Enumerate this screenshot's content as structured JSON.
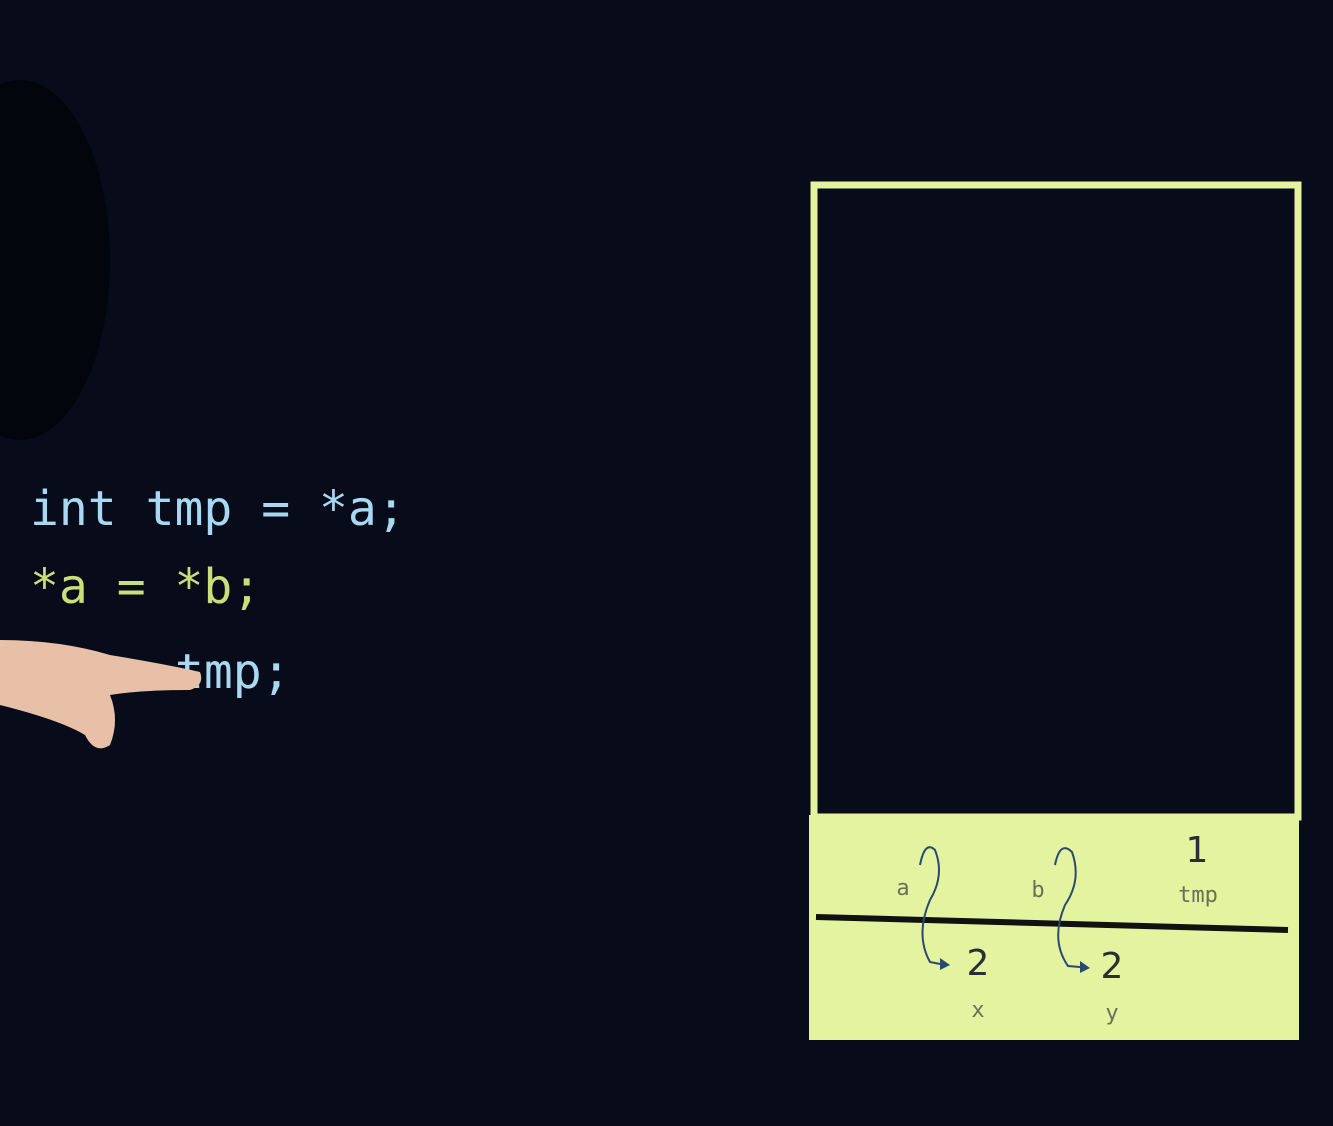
{
  "code": {
    "lines": [
      "int tmp = *a;",
      "*a = *b;",
      "tmp;"
    ]
  },
  "diagram": {
    "swap_frame": [
      {
        "name": "a"
      },
      {
        "name": "b"
      },
      {
        "name": "tmp",
        "value": "1"
      }
    ],
    "main_frame": [
      {
        "name": "x",
        "value": "2"
      },
      {
        "name": "y",
        "value": "2"
      }
    ]
  }
}
